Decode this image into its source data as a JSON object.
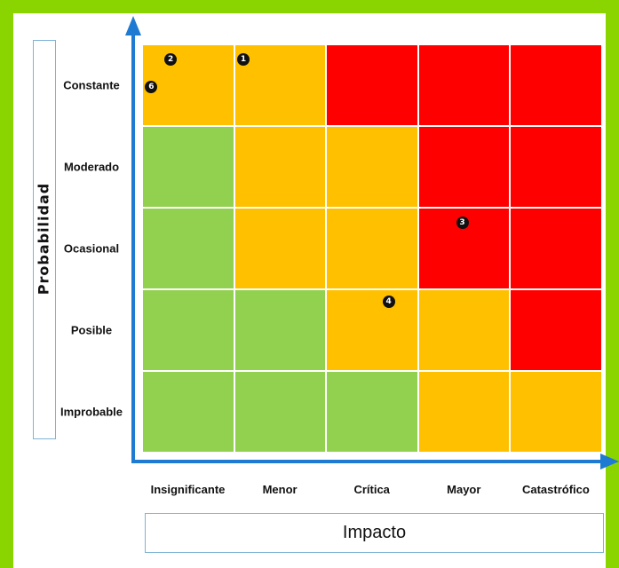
{
  "y_axis_title": "Probabilidad",
  "x_axis_title": "Impacto",
  "rows": [
    "Constante",
    "Moderado",
    "Ocasional",
    "Posible",
    "Improbable"
  ],
  "columns": [
    "Insignificante",
    "Menor",
    "Crítica",
    "Mayor",
    "Catastrófico"
  ],
  "colors": {
    "green": "#92d050",
    "orange": "#ffc000",
    "red": "#ff0000",
    "axis": "#1f7bd1"
  },
  "matrix": [
    [
      "orange",
      "orange",
      "red",
      "red",
      "red"
    ],
    [
      "green",
      "orange",
      "orange",
      "red",
      "red"
    ],
    [
      "green",
      "orange",
      "orange",
      "red",
      "red"
    ],
    [
      "green",
      "green",
      "orange",
      "orange",
      "red"
    ],
    [
      "green",
      "green",
      "green",
      "orange",
      "orange"
    ]
  ],
  "markers": [
    {
      "label": "2",
      "row": "Constante",
      "column": "Insignificante"
    },
    {
      "label": "6",
      "row": "Constante",
      "column": "Insignificante"
    },
    {
      "label": "1",
      "row": "Constante",
      "column": "Menor"
    },
    {
      "label": "3",
      "row": "Ocasional",
      "column": "Mayor"
    },
    {
      "label": "4",
      "row": "Posible",
      "column": "Crítica"
    }
  ]
}
